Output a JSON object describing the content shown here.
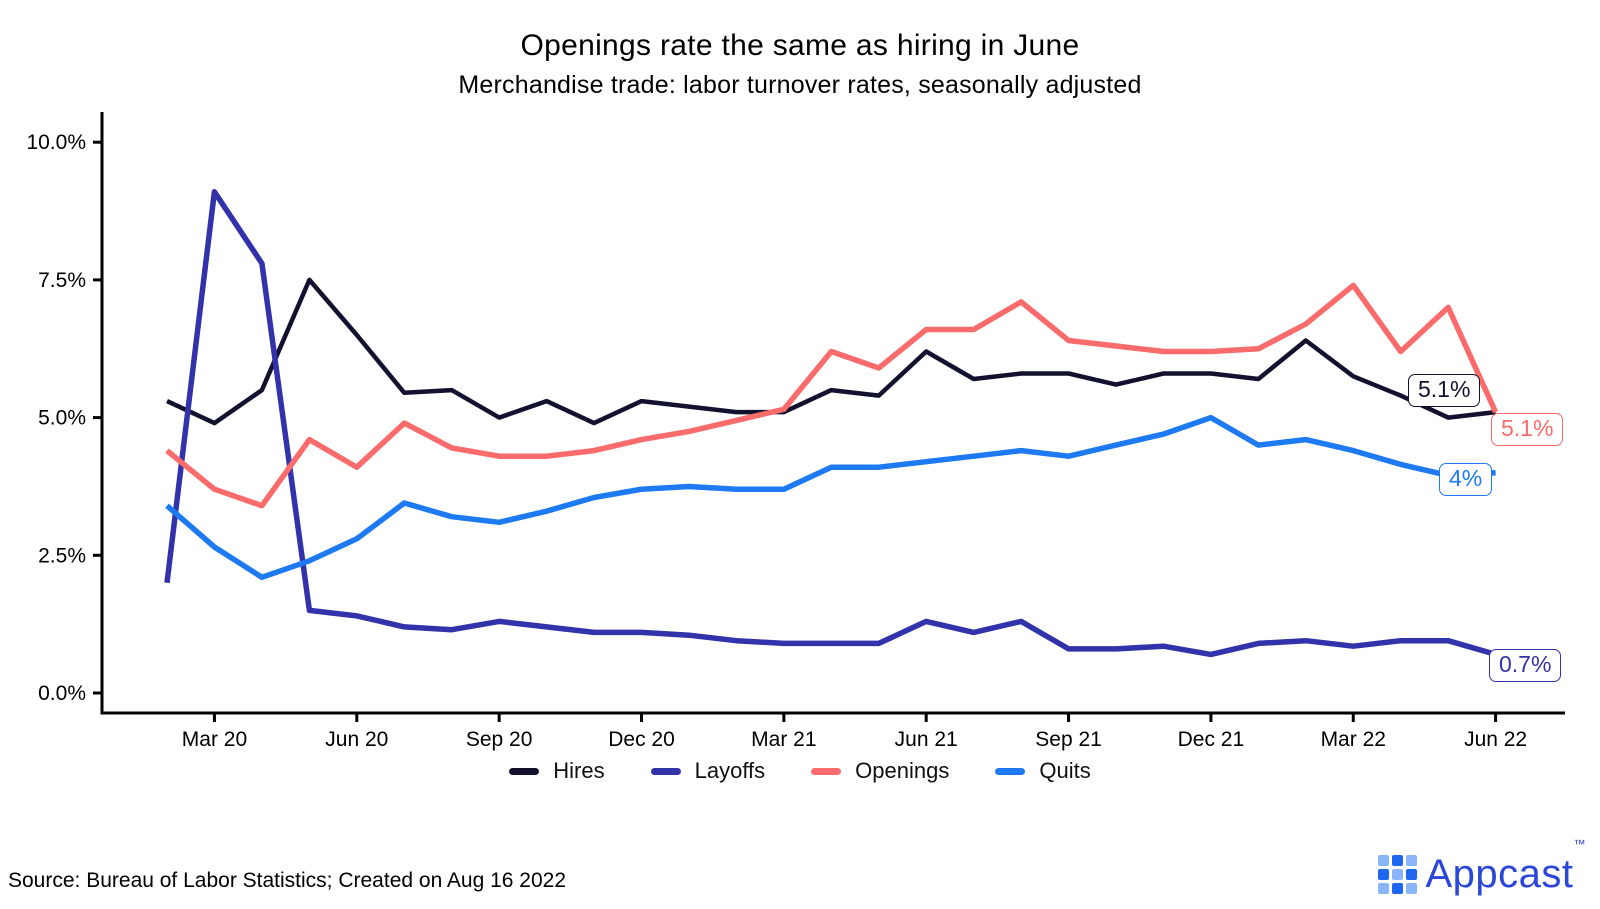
{
  "header": {
    "title": "Openings rate the same as hiring in June",
    "subtitle": "Merchandise trade: labor turnover rates, seasonally adjusted"
  },
  "chart_data": {
    "type": "line",
    "x": [
      "Feb 20",
      "Mar 20",
      "Apr 20",
      "May 20",
      "Jun 20",
      "Jul 20",
      "Aug 20",
      "Sep 20",
      "Oct 20",
      "Nov 20",
      "Dec 20",
      "Jan 21",
      "Feb 21",
      "Mar 21",
      "Apr 21",
      "May 21",
      "Jun 21",
      "Jul 21",
      "Aug 21",
      "Sep 21",
      "Oct 21",
      "Nov 21",
      "Dec 21",
      "Jan 22",
      "Feb 22",
      "Mar 22",
      "Apr 22",
      "May 22",
      "Jun 22"
    ],
    "x_ticks": [
      {
        "label": "Mar 20",
        "index": 1
      },
      {
        "label": "Jun 20",
        "index": 4
      },
      {
        "label": "Sep 20",
        "index": 7
      },
      {
        "label": "Dec 20",
        "index": 10
      },
      {
        "label": "Mar 21",
        "index": 13
      },
      {
        "label": "Jun 21",
        "index": 16
      },
      {
        "label": "Sep 21",
        "index": 19
      },
      {
        "label": "Dec 21",
        "index": 22
      },
      {
        "label": "Mar 22",
        "index": 25
      },
      {
        "label": "Jun 22",
        "index": 28
      }
    ],
    "y_ticks": [
      {
        "label": "0.0%",
        "value": 0
      },
      {
        "label": "2.5%",
        "value": 2.5
      },
      {
        "label": "5.0%",
        "value": 5
      },
      {
        "label": "7.5%",
        "value": 7.5
      },
      {
        "label": "10.0%",
        "value": 10
      }
    ],
    "ylim": [
      0,
      10.5
    ],
    "ylabel": "",
    "xlabel": "",
    "grid": false,
    "legend_position": "bottom",
    "series": [
      {
        "name": "Hires",
        "color": "#12122e",
        "end_label": "5.1%",
        "values": [
          5.3,
          4.9,
          5.5,
          7.5,
          6.5,
          5.45,
          5.5,
          5.0,
          5.3,
          4.9,
          5.3,
          5.2,
          5.1,
          5.1,
          5.5,
          5.4,
          6.2,
          5.7,
          5.8,
          5.8,
          5.6,
          5.8,
          5.8,
          5.7,
          6.4,
          5.75,
          5.4,
          5.0,
          5.1
        ]
      },
      {
        "name": "Layoffs",
        "color": "#3232aa",
        "end_label": "0.7%",
        "values": [
          2.0,
          9.1,
          7.8,
          1.5,
          1.4,
          1.2,
          1.15,
          1.3,
          1.2,
          1.1,
          1.1,
          1.05,
          0.95,
          0.9,
          0.9,
          0.9,
          1.3,
          1.1,
          1.3,
          0.8,
          0.8,
          0.85,
          0.7,
          0.9,
          0.95,
          0.85,
          0.95,
          0.95,
          0.7
        ]
      },
      {
        "name": "Openings",
        "color": "#fa6b6b",
        "end_label": "5.1%",
        "values": [
          4.4,
          3.7,
          3.4,
          4.6,
          4.1,
          4.9,
          4.45,
          4.3,
          4.3,
          4.4,
          4.6,
          4.75,
          4.95,
          5.15,
          6.2,
          5.9,
          6.6,
          6.6,
          7.1,
          6.4,
          6.3,
          6.2,
          6.2,
          6.25,
          6.7,
          7.4,
          6.2,
          7.0,
          5.1
        ]
      },
      {
        "name": "Quits",
        "color": "#1d7af2",
        "end_label": "4%",
        "values": [
          3.4,
          2.65,
          2.1,
          2.4,
          2.8,
          3.45,
          3.2,
          3.1,
          3.3,
          3.55,
          3.7,
          3.75,
          3.7,
          3.7,
          4.1,
          4.1,
          4.2,
          4.3,
          4.4,
          4.3,
          4.5,
          4.7,
          5.0,
          4.5,
          4.6,
          4.4,
          4.15,
          3.95,
          4.0
        ]
      }
    ]
  },
  "footer": {
    "source": "Source: Bureau of Labor Statistics; Created on Aug 16 2022",
    "brand": "Appcast",
    "brand_tm": "™"
  }
}
